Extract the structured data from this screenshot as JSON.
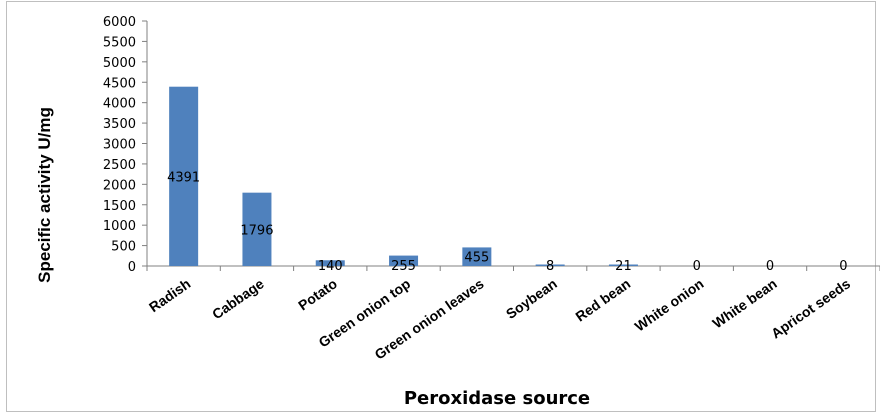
{
  "chart_data": {
    "type": "bar",
    "title": "",
    "xlabel": "Peroxidase source",
    "ylabel": "Specific activity U/mg",
    "ylim": [
      0,
      6000
    ],
    "yticks": [
      0,
      500,
      1000,
      1500,
      2000,
      2500,
      3000,
      3500,
      4000,
      4500,
      5000,
      5500,
      6000
    ],
    "categories": [
      "Radish",
      "Cabbage",
      "Potato",
      "Green onion top",
      "Green onion leaves",
      "Soybean",
      "Red bean",
      "White onion",
      "White bean",
      "Apricot seeds"
    ],
    "values": [
      4391,
      1796,
      140,
      255,
      455,
      8,
      21,
      0,
      0,
      0
    ],
    "bar_color": "#4f81bd",
    "grid": false,
    "legend": "none"
  }
}
